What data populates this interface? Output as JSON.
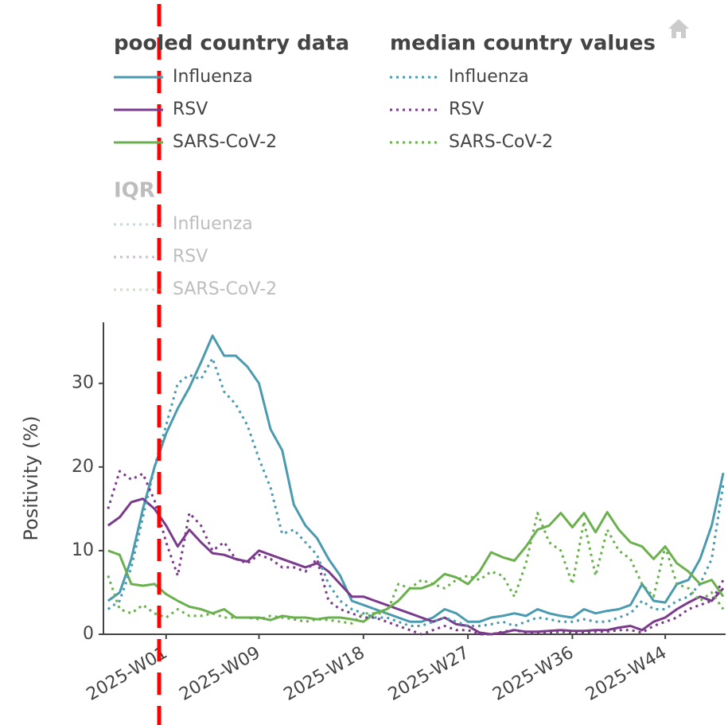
{
  "chart_data": {
    "type": "line",
    "y_label": "Positivity (%)",
    "ylim": [
      0,
      37.3
    ],
    "yticks": [
      0,
      10,
      20,
      30
    ],
    "xlim": [
      -4.4,
      49.2
    ],
    "xticks": [
      {
        "value": 1,
        "label": "2025-W01"
      },
      {
        "value": 9,
        "label": "2025-W09"
      },
      {
        "value": 18,
        "label": "2025-W18"
      },
      {
        "value": 27,
        "label": "2025-W27"
      },
      {
        "value": 36,
        "label": "2025-W36"
      },
      {
        "value": 44,
        "label": "2025-W44"
      }
    ],
    "x": [
      -4,
      -3,
      -2,
      -1,
      0,
      1,
      2,
      3,
      4,
      5,
      6,
      7,
      8,
      9,
      10,
      11,
      12,
      13,
      14,
      15,
      16,
      17,
      18,
      19,
      20,
      21,
      22,
      23,
      24,
      25,
      26,
      27,
      28,
      29,
      30,
      31,
      32,
      33,
      34,
      35,
      36,
      37,
      38,
      39,
      40,
      41,
      42,
      43,
      44,
      45,
      46,
      47,
      48,
      49
    ],
    "reference_line": {
      "x": 0.4,
      "color": "#ff0000"
    },
    "groups": [
      {
        "title": "pooled country data",
        "dash": "solid",
        "visible": true,
        "series": [
          {
            "name": "Influenza",
            "color": "#4a9bb0",
            "values": [
              4,
              5,
              9,
              15,
              20,
              24,
              27,
              29.5,
              32.5,
              35.7,
              33.3,
              33.3,
              32,
              30,
              24.5,
              22,
              15.5,
              13,
              11.5,
              9,
              7,
              4,
              3.5,
              3,
              2.5,
              2,
              1.5,
              1.5,
              2,
              3,
              2.5,
              1.5,
              1.5,
              2,
              2.2,
              2.5,
              2.2,
              3,
              2.5,
              2.2,
              2,
              3,
              2.5,
              2.8,
              3,
              3.5,
              6,
              4,
              3.8,
              6,
              6.5,
              9,
              13,
              19.3
            ]
          },
          {
            "name": "RSV",
            "color": "#7b3b8c",
            "values": [
              13,
              14,
              15.8,
              16.2,
              15,
              13,
              10.5,
              12.5,
              11,
              9.7,
              9.5,
              9,
              8.7,
              10,
              9.5,
              9,
              8.5,
              8,
              8.5,
              7.5,
              6,
              4.5,
              4.5,
              4,
              3.5,
              3,
              2.5,
              2,
              1.5,
              2,
              1.2,
              1,
              0.2,
              0,
              0.2,
              0.5,
              0.3,
              0.3,
              0.4,
              0.5,
              0.4,
              0.4,
              0.5,
              0.5,
              0.8,
              1,
              0.5,
              1.5,
              2,
              3,
              3.8,
              4.5,
              4,
              5.5
            ]
          },
          {
            "name": "SARS-CoV-2",
            "color": "#6ab04c",
            "values": [
              10,
              9.5,
              6,
              5.8,
              6,
              4.8,
              4,
              3.3,
              3,
              2.5,
              3,
              2,
              2,
              2,
              1.7,
              2.2,
              2,
              2,
              1.8,
              2,
              2,
              1.8,
              1.5,
              2.5,
              3,
              4,
              5.5,
              5.5,
              6,
              7.2,
              6.8,
              6,
              7.5,
              9.8,
              9.2,
              8.8,
              10.5,
              12.5,
              13,
              14.5,
              12.8,
              14.5,
              12.2,
              14.6,
              12.5,
              11,
              10.5,
              9,
              10.5,
              8.5,
              7.5,
              6,
              6.5,
              4.5
            ]
          }
        ]
      },
      {
        "title": "median country values",
        "dash": "dot",
        "visible": true,
        "series": [
          {
            "name": "Influenza",
            "color": "#4a9bb0",
            "values": [
              3,
              4,
              8,
              14,
              20,
              25,
              30,
              31,
              30.5,
              33,
              29,
              27.5,
              25,
              21,
              17.5,
              12,
              12.5,
              11,
              9.5,
              6,
              4,
              3,
              2.5,
              2,
              2,
              1.5,
              1,
              1,
              1.5,
              2,
              1.5,
              1,
              1,
              1.2,
              1.5,
              1,
              1.5,
              2,
              1.8,
              1.5,
              1.5,
              1.8,
              1.5,
              1.5,
              2,
              2.5,
              4,
              3,
              3,
              4,
              4.5,
              6,
              9,
              18
            ]
          },
          {
            "name": "RSV",
            "color": "#7b3b8c",
            "values": [
              15,
              19.5,
              18.5,
              19.2,
              16,
              11,
              7,
              14.5,
              13,
              10,
              11,
              9,
              8.5,
              9.5,
              9,
              8,
              8,
              7.5,
              9,
              4,
              3,
              2.5,
              2,
              2,
              1.5,
              1,
              0.5,
              0,
              0.5,
              1,
              0.5,
              0.5,
              0,
              0,
              0.3,
              0.5,
              0.2,
              0.2,
              0.2,
              0.3,
              0.2,
              0.2,
              0.3,
              0.3,
              0.5,
              0.5,
              0.2,
              1,
              1.5,
              2,
              3,
              3.5,
              4,
              6.5
            ]
          },
          {
            "name": "SARS-CoV-2",
            "color": "#6ab04c",
            "values": [
              7,
              3,
              2.5,
              3.5,
              2.5,
              2,
              3,
              2.2,
              2.2,
              2.5,
              2,
              2,
              2,
              1.8,
              2.2,
              2,
              1.8,
              1.5,
              1.8,
              1.7,
              1.5,
              1.3,
              2.5,
              2.5,
              2.5,
              6,
              5.5,
              6.5,
              6,
              5.5,
              6.5,
              7,
              6.5,
              7.5,
              7,
              4.5,
              8.5,
              14.5,
              11,
              10,
              6,
              13.5,
              7,
              12.5,
              10,
              9,
              6,
              4.5,
              10.5,
              6,
              5.5,
              4,
              5,
              3
            ]
          }
        ]
      },
      {
        "title": "IQR",
        "dash": "dot",
        "visible": false,
        "series": [
          {
            "name": "Influenza",
            "color": "#4a9bb0"
          },
          {
            "name": "RSV",
            "color": "#7b3b8c"
          },
          {
            "name": "SARS-CoV-2",
            "color": "#6ab04c"
          }
        ]
      }
    ]
  }
}
